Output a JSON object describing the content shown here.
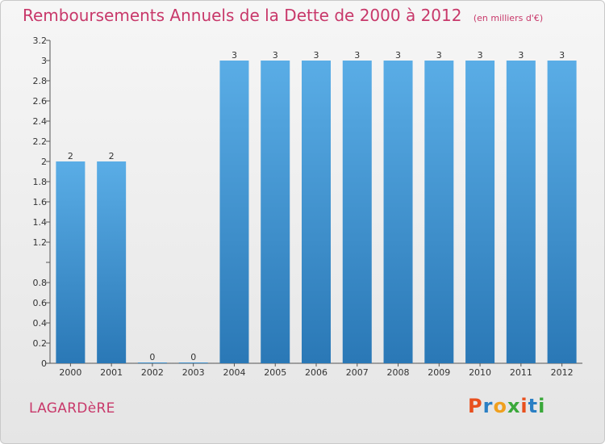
{
  "title": "Remboursements Annuels de la Dette de 2000 à 2012",
  "subtitle": "(en milliers d'€)",
  "place": "LAGARDèRE",
  "logo": {
    "text": "Proxiti",
    "colors": [
      "#e8501e",
      "#2a7fc4",
      "#f0a01e",
      "#3aa83a",
      "#e8501e",
      "#2a7fc4",
      "#3aa83a"
    ]
  },
  "colors": {
    "bar_top": "#5aade6",
    "bar_bottom": "#2a78b6",
    "title": "#c8386a"
  },
  "chart_data": {
    "type": "bar",
    "categories": [
      "2000",
      "2001",
      "2002",
      "2003",
      "2004",
      "2005",
      "2006",
      "2007",
      "2008",
      "2009",
      "2010",
      "2011",
      "2012"
    ],
    "values": [
      2,
      2,
      0,
      0,
      3,
      3,
      3,
      3,
      3,
      3,
      3,
      3,
      3
    ],
    "value_labels": [
      "2",
      "2",
      "0",
      "0",
      "3",
      "3",
      "3",
      "3",
      "3",
      "3",
      "3",
      "3",
      "3"
    ],
    "yticks": [
      0,
      0.2,
      0.4,
      0.6,
      0.8,
      1,
      1.2,
      1.4,
      1.6,
      1.8,
      2,
      2.2,
      2.4,
      2.6,
      2.8,
      3,
      3.2
    ],
    "ytick_labels": [
      "0",
      "0.2",
      "0.4",
      "0.6",
      "0.8",
      "",
      "1.2",
      "1.4",
      "1.6",
      "1.8",
      "2",
      "2.2",
      "2.4",
      "2.6",
      "2.8",
      "3",
      "3.2"
    ],
    "ylim": [
      0,
      3.2
    ],
    "grid": false
  }
}
